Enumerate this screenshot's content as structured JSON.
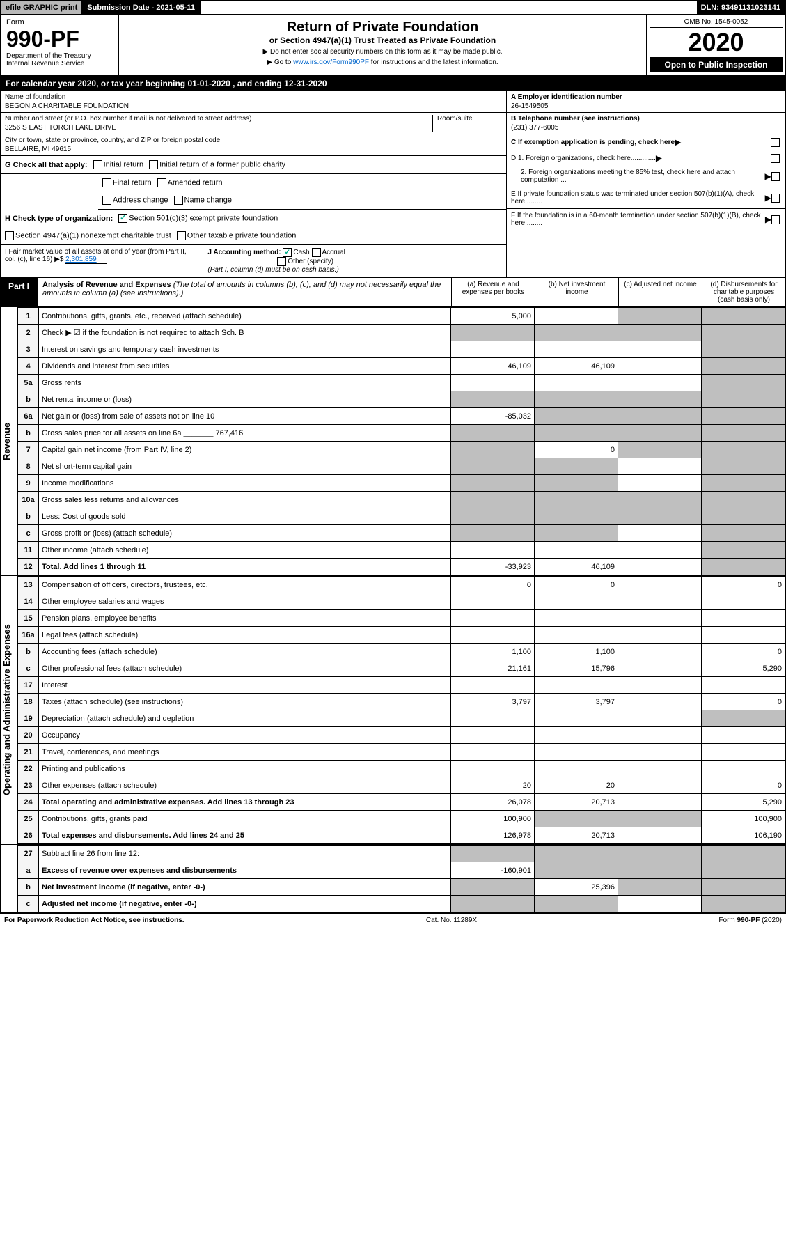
{
  "top": {
    "efile": "efile GRAPHIC print",
    "subdate_label": "Submission Date - 2021-05-11",
    "dln": "DLN: 93491131023141"
  },
  "header": {
    "form_label": "Form",
    "form_no": "990-PF",
    "dept": "Department of the Treasury\nInternal Revenue Service",
    "title": "Return of Private Foundation",
    "subtitle": "or Section 4947(a)(1) Trust Treated as Private Foundation",
    "note1": "▶ Do not enter social security numbers on this form as it may be made public.",
    "note2_pre": "▶ Go to ",
    "note2_link": "www.irs.gov/Form990PF",
    "note2_post": " for instructions and the latest information.",
    "omb": "OMB No. 1545-0052",
    "year": "2020",
    "open": "Open to Public Inspection"
  },
  "cal": "For calendar year 2020, or tax year beginning 01-01-2020                          , and ending 12-31-2020",
  "info": {
    "name_label": "Name of foundation",
    "name": "BEGONIA CHARITABLE FOUNDATION",
    "addr_label": "Number and street (or P.O. box number if mail is not delivered to street address)",
    "addr": "3256 S EAST TORCH LAKE DRIVE",
    "room_label": "Room/suite",
    "city_label": "City or town, state or province, country, and ZIP or foreign postal code",
    "city": "BELLAIRE, MI  49615",
    "ein_label": "A Employer identification number",
    "ein": "26-1549505",
    "tel_label": "B Telephone number (see instructions)",
    "tel": "(231) 377-6005",
    "c_label": "C If exemption application is pending, check here",
    "d1": "D 1. Foreign organizations, check here.............",
    "d2": "2. Foreign organizations meeting the 85% test, check here and attach computation ...",
    "e": "E If private foundation status was terminated under section 507(b)(1)(A), check here ........",
    "f": "F If the foundation is in a 60-month termination under section 507(b)(1)(B), check here ........"
  },
  "g": {
    "label": "G Check all that apply:",
    "initial": "Initial return",
    "initial_former": "Initial return of a former public charity",
    "final": "Final return",
    "amended": "Amended return",
    "addr_change": "Address change",
    "name_change": "Name change"
  },
  "h": {
    "label": "H Check type of organization:",
    "sec501": "Section 501(c)(3) exempt private foundation",
    "sec501_checked": true,
    "sec4947": "Section 4947(a)(1) nonexempt charitable trust",
    "other_tax": "Other taxable private foundation"
  },
  "i": {
    "label": "I Fair market value of all assets at end of year (from Part II, col. (c), line 16) ▶$",
    "val": "2,301,859"
  },
  "j": {
    "label": "J Accounting method:",
    "cash": "Cash",
    "cash_checked": true,
    "accrual": "Accrual",
    "other": "Other (specify)",
    "note": "(Part I, column (d) must be on cash basis.)"
  },
  "part1": {
    "label": "Part I",
    "title": "Analysis of Revenue and Expenses",
    "title_note": " (The total of amounts in columns (b), (c), and (d) may not necessarily equal the amounts in column (a) (see instructions).)",
    "col_a": "(a)   Revenue and expenses per books",
    "col_b": "(b)   Net investment income",
    "col_c": "(c)   Adjusted net income",
    "col_d": "(d)   Disbursements for charitable purposes (cash basis only)"
  },
  "revenue_label": "Revenue",
  "expenses_label": "Operating and Administrative Expenses",
  "rows": [
    {
      "n": "1",
      "d": "Contributions, gifts, grants, etc., received (attach schedule)",
      "a": "5,000",
      "b": "",
      "c_shade": true,
      "d_shade": true
    },
    {
      "n": "2",
      "d": "Check ▶ ☑ if the foundation is not required to attach Sch. B",
      "a": "",
      "b": "",
      "c_shade": true,
      "d_shade": true,
      "a_shade": true,
      "b_shade": true
    },
    {
      "n": "3",
      "d": "Interest on savings and temporary cash investments",
      "a": "",
      "b": "",
      "c": "",
      "d_shade": true
    },
    {
      "n": "4",
      "d": "Dividends and interest from securities",
      "a": "46,109",
      "b": "46,109",
      "c": "",
      "d_shade": true
    },
    {
      "n": "5a",
      "d": "Gross rents",
      "a": "",
      "b": "",
      "c": "",
      "d_shade": true
    },
    {
      "n": "b",
      "d": "Net rental income or (loss)",
      "a_shade": true,
      "b_shade": true,
      "c_shade": true,
      "d_shade": true
    },
    {
      "n": "6a",
      "d": "Net gain or (loss) from sale of assets not on line 10",
      "a": "-85,032",
      "b_shade": true,
      "c_shade": true,
      "d_shade": true
    },
    {
      "n": "b",
      "d": "Gross sales price for all assets on line 6a _______ 767,416",
      "a_shade": true,
      "b_shade": true,
      "c_shade": true,
      "d_shade": true
    },
    {
      "n": "7",
      "d": "Capital gain net income (from Part IV, line 2)",
      "a_shade": true,
      "b": "0",
      "c_shade": true,
      "d_shade": true
    },
    {
      "n": "8",
      "d": "Net short-term capital gain",
      "a_shade": true,
      "b_shade": true,
      "c": "",
      "d_shade": true
    },
    {
      "n": "9",
      "d": "Income modifications",
      "a_shade": true,
      "b_shade": true,
      "c": "",
      "d_shade": true
    },
    {
      "n": "10a",
      "d": "Gross sales less returns and allowances",
      "a_shade": true,
      "b_shade": true,
      "c_shade": true,
      "d_shade": true
    },
    {
      "n": "b",
      "d": "Less: Cost of goods sold",
      "a_shade": true,
      "b_shade": true,
      "c_shade": true,
      "d_shade": true
    },
    {
      "n": "c",
      "d": "Gross profit or (loss) (attach schedule)",
      "a_shade": true,
      "b_shade": true,
      "c": "",
      "d_shade": true
    },
    {
      "n": "11",
      "d": "Other income (attach schedule)",
      "a": "",
      "b": "",
      "c": "",
      "d_shade": true
    },
    {
      "n": "12",
      "d": "Total. Add lines 1 through 11",
      "a": "-33,923",
      "b": "46,109",
      "c": "",
      "d_shade": true,
      "bold": true
    }
  ],
  "exp_rows": [
    {
      "n": "13",
      "d": "0",
      "a": "0",
      "b": "0",
      "c": ""
    },
    {
      "n": "14",
      "d": "",
      "a": "",
      "b": "",
      "c": ""
    },
    {
      "n": "15",
      "d": "",
      "a": "",
      "b": "",
      "c": ""
    },
    {
      "n": "16a",
      "d": "",
      "a": "",
      "b": "",
      "c": ""
    },
    {
      "n": "b",
      "d": "0",
      "a": "1,100",
      "b": "1,100",
      "c": ""
    },
    {
      "n": "c",
      "d": "5,290",
      "a": "21,161",
      "b": "15,796",
      "c": ""
    },
    {
      "n": "17",
      "d": "",
      "a": "",
      "b": "",
      "c": ""
    },
    {
      "n": "18",
      "d": "0",
      "a": "3,797",
      "b": "3,797",
      "c": ""
    },
    {
      "n": "19",
      "d": "Depreciation (attach schedule) and depletion",
      "a": "",
      "b": "",
      "c": "",
      "d_shade": true
    },
    {
      "n": "20",
      "d": "",
      "a": "",
      "b": "",
      "c": ""
    },
    {
      "n": "21",
      "d": "",
      "a": "",
      "b": "",
      "c": ""
    },
    {
      "n": "22",
      "d": "",
      "a": "",
      "b": "",
      "c": ""
    },
    {
      "n": "23",
      "d": "0",
      "a": "20",
      "b": "20",
      "c": ""
    },
    {
      "n": "24",
      "d": "5,290",
      "a": "26,078",
      "b": "20,713",
      "c": "",
      "bold": true
    },
    {
      "n": "25",
      "d": "100,900",
      "a": "100,900",
      "b_shade": true,
      "c_shade": true
    },
    {
      "n": "26",
      "d": "106,190",
      "a": "126,978",
      "b": "20,713",
      "c": "",
      "bold": true
    }
  ],
  "bottom_rows": [
    {
      "n": "27",
      "d": "Subtract line 26 from line 12:",
      "a_shade": true,
      "b_shade": true,
      "c_shade": true,
      "d_shade": true
    },
    {
      "n": "a",
      "d": "Excess of revenue over expenses and disbursements",
      "a": "-160,901",
      "b_shade": true,
      "c_shade": true,
      "d_shade": true,
      "bold": true
    },
    {
      "n": "b",
      "d": "Net investment income (if negative, enter -0-)",
      "a_shade": true,
      "b": "25,396",
      "c_shade": true,
      "d_shade": true,
      "bold": true
    },
    {
      "n": "c",
      "d": "Adjusted net income (if negative, enter -0-)",
      "a_shade": true,
      "b_shade": true,
      "c": "",
      "d_shade": true,
      "bold": true
    }
  ],
  "footer": {
    "left": "For Paperwork Reduction Act Notice, see instructions.",
    "mid": "Cat. No. 11289X",
    "right": "Form 990-PF (2020)"
  }
}
